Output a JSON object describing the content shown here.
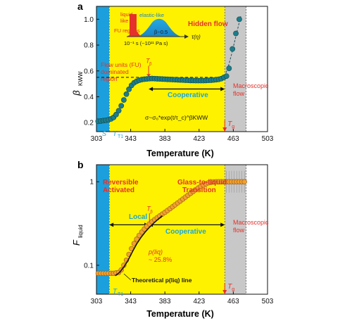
{
  "chart_data": [
    {
      "panel": "a",
      "type": "scatter",
      "xlabel": "Temperature (K)",
      "ylabel_main": "β",
      "ylabel_sub": "KWW",
      "xlim": [
        303,
        503
      ],
      "ylim": [
        0.13,
        1.1
      ],
      "xticks": [
        303,
        343,
        383,
        423,
        463,
        503
      ],
      "yticks": [
        0.2,
        0.4,
        0.6,
        0.8,
        1.0
      ],
      "ytick_labels": [
        "0.2",
        "0.4",
        "0.6",
        "0.8",
        "1.0"
      ],
      "regions": [
        {
          "from": 303,
          "to": 318,
          "color": "#1ba0dd"
        },
        {
          "from": 318,
          "to": 453,
          "color": "#fff200"
        },
        {
          "from": 453,
          "to": 478,
          "color": "#c8c8c8"
        }
      ],
      "series": [
        {
          "marker_color": "#1d7d8a",
          "x": [
            305,
            308,
            311,
            314,
            317,
            320,
            323,
            326,
            329,
            332,
            335,
            338,
            341,
            344,
            347,
            350,
            353,
            356,
            359,
            362,
            365,
            368,
            371,
            374,
            377,
            380,
            383,
            386,
            389,
            392,
            395,
            398,
            401,
            404,
            407,
            410,
            413,
            416,
            419,
            422,
            425,
            428,
            431,
            434,
            437,
            440,
            443,
            446,
            449,
            452,
            455
          ],
          "y": [
            0.21,
            0.212,
            0.215,
            0.218,
            0.222,
            0.228,
            0.24,
            0.262,
            0.292,
            0.33,
            0.375,
            0.42,
            0.458,
            0.488,
            0.508,
            0.52,
            0.528,
            0.533,
            0.536,
            0.538,
            0.54,
            0.541,
            0.54,
            0.539,
            0.538,
            0.537,
            0.536,
            0.535,
            0.534,
            0.533,
            0.532,
            0.531,
            0.53,
            0.529,
            0.528,
            0.527,
            0.526,
            0.526,
            0.525,
            0.525,
            0.525,
            0.525,
            0.526,
            0.527,
            0.528,
            0.53,
            0.532,
            0.535,
            0.54,
            0.55,
            0.56
          ]
        },
        {
          "marker_color": "#1d7d8a",
          "x": [
            458,
            462,
            466,
            470
          ],
          "y": [
            0.62,
            0.77,
            0.89,
            1.0
          ]
        }
      ],
      "dashed_fit": {
        "x": [
          453,
          457,
          461,
          465,
          469,
          472
        ],
        "y": [
          0.56,
          0.63,
          0.73,
          0.84,
          0.95,
          1.03
        ]
      },
      "ref_line_y": 0.55,
      "ref_line_x": [
        303,
        453
      ],
      "tau_arrow_x": 364,
      "tg_x": 453,
      "cooperative_arrow": [
        364,
        453
      ],
      "annotations": {
        "hidden_flow": "Hidden flow",
        "flow_units_1": "Flow units (FU)",
        "flow_units_2": "dominated",
        "flow_units_3": "region",
        "cooperative": "Cooperative",
        "macro_1": "Macroscopic",
        "macro_2": "flow",
        "formula": "σ~σ₀*exp(t/τ_c)^βKWW",
        "t_beta": "T",
        "t_beta_sub": "β",
        "t_g": "T",
        "t_g_sub": "g",
        "t_t1": "T",
        "t_t1_sub": "T1",
        "s_mark": "S"
      },
      "inset": {
        "liquid_1": "liquid-",
        "liquid_2": "like",
        "elastic": "elastic-like",
        "fu": "FU regions",
        "beta": "β~0.5",
        "axis": "τ(η)",
        "left_tick": "10⁻¹ s (~10¹¹ Pa s)"
      },
      "panel_label": "a"
    },
    {
      "panel": "b",
      "type": "scatter",
      "xlabel": "Temperature (K)",
      "ylabel_main": "F",
      "ylabel_sub": "liquid",
      "xlim": [
        303,
        503
      ],
      "ylim": [
        0.045,
        1.6
      ],
      "yscale": "log",
      "xticks": [
        303,
        343,
        383,
        423,
        463,
        503
      ],
      "yticks": [
        0.1,
        1
      ],
      "ytick_labels": [
        "0.1",
        "1"
      ],
      "regions": [
        {
          "from": 303,
          "to": 318,
          "color": "#1ba0dd"
        },
        {
          "from": 318,
          "to": 453,
          "color": "#fff200"
        },
        {
          "from": 453,
          "to": 478,
          "color": "#c8c8c8"
        }
      ],
      "series": [
        {
          "marker_color": "#f0a030",
          "x": [
            305,
            308,
            311,
            314,
            317,
            320,
            323,
            326,
            329,
            332,
            335,
            338,
            341,
            344,
            347,
            350,
            353,
            356,
            359,
            362,
            365,
            368,
            371,
            374,
            377,
            380,
            383,
            386,
            389,
            392,
            395,
            398,
            401,
            404,
            407,
            410,
            413,
            416,
            419,
            422,
            425,
            428,
            431,
            434,
            437,
            440,
            443,
            446,
            449,
            452,
            455,
            458,
            461,
            464,
            467,
            470,
            473,
            476
          ],
          "y": [
            0.08,
            0.08,
            0.08,
            0.08,
            0.08,
            0.08,
            0.08,
            0.081,
            0.082,
            0.088,
            0.1,
            0.115,
            0.135,
            0.158,
            0.182,
            0.205,
            0.228,
            0.25,
            0.272,
            0.293,
            0.313,
            0.333,
            0.352,
            0.371,
            0.39,
            0.41,
            0.43,
            0.452,
            0.476,
            0.502,
            0.529,
            0.558,
            0.588,
            0.62,
            0.654,
            0.689,
            0.726,
            0.764,
            0.803,
            0.842,
            0.88,
            0.915,
            0.945,
            0.97,
            0.985,
            0.995,
            1.0,
            1.0,
            1.0,
            1.0,
            1.0,
            1.0,
            1.0,
            1.0,
            1.0,
            1.0,
            1.0,
            1.0
          ]
        }
      ],
      "theory_line": {
        "x": [
          325,
          330,
          335,
          340,
          345,
          350,
          355,
          360,
          365,
          370,
          375,
          380
        ],
        "y": [
          0.075,
          0.082,
          0.095,
          0.115,
          0.145,
          0.18,
          0.215,
          0.25,
          0.285,
          0.32,
          0.355,
          0.392
        ]
      },
      "tg_x": 453,
      "tbeta_x": 365,
      "local_arrow": [
        318,
        364
      ],
      "cooperative_arrow": [
        364,
        453
      ],
      "annotations": {
        "reversible_1": "Reversible",
        "reversible_2": "Activated",
        "glass_1": "Glass-to-liquid",
        "glass_2": "Transition",
        "local": "Local",
        "cooperative": "Cooperative",
        "macro_1": "Macroscopic",
        "macro_2": "flow",
        "pliq_1": "p(liq)",
        "pliq_2": "~ 25.8%",
        "theory": "Theoretical p(liq) line",
        "t_beta": "T",
        "t_beta_sub": "β",
        "t_g": "T",
        "t_g_sub": "g",
        "t_t1": "T",
        "t_t1_sub": "T1",
        "s_mark": "S"
      },
      "panel_label": "b"
    }
  ]
}
